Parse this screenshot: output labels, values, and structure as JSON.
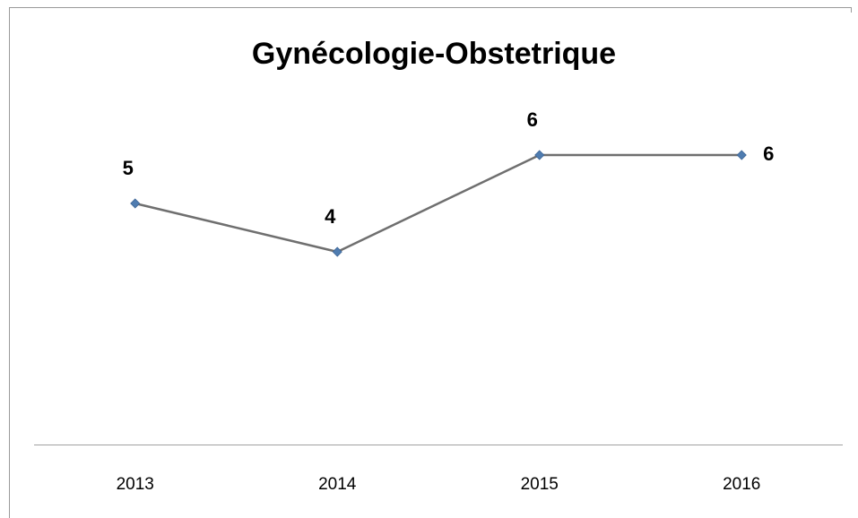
{
  "chart_data": {
    "type": "line",
    "title": "Gynécologie-Obstetrique",
    "categories": [
      "2013",
      "2014",
      "2015",
      "2016"
    ],
    "series": [
      {
        "name": "Gynécologie-Obstetrique",
        "color": "#6f6f6f",
        "marker_color": "#4f7cb0",
        "values": [
          5,
          4,
          6,
          6
        ]
      }
    ],
    "ylim": [
      0,
      7
    ],
    "data_labels": true,
    "legend": false,
    "grid": false
  }
}
